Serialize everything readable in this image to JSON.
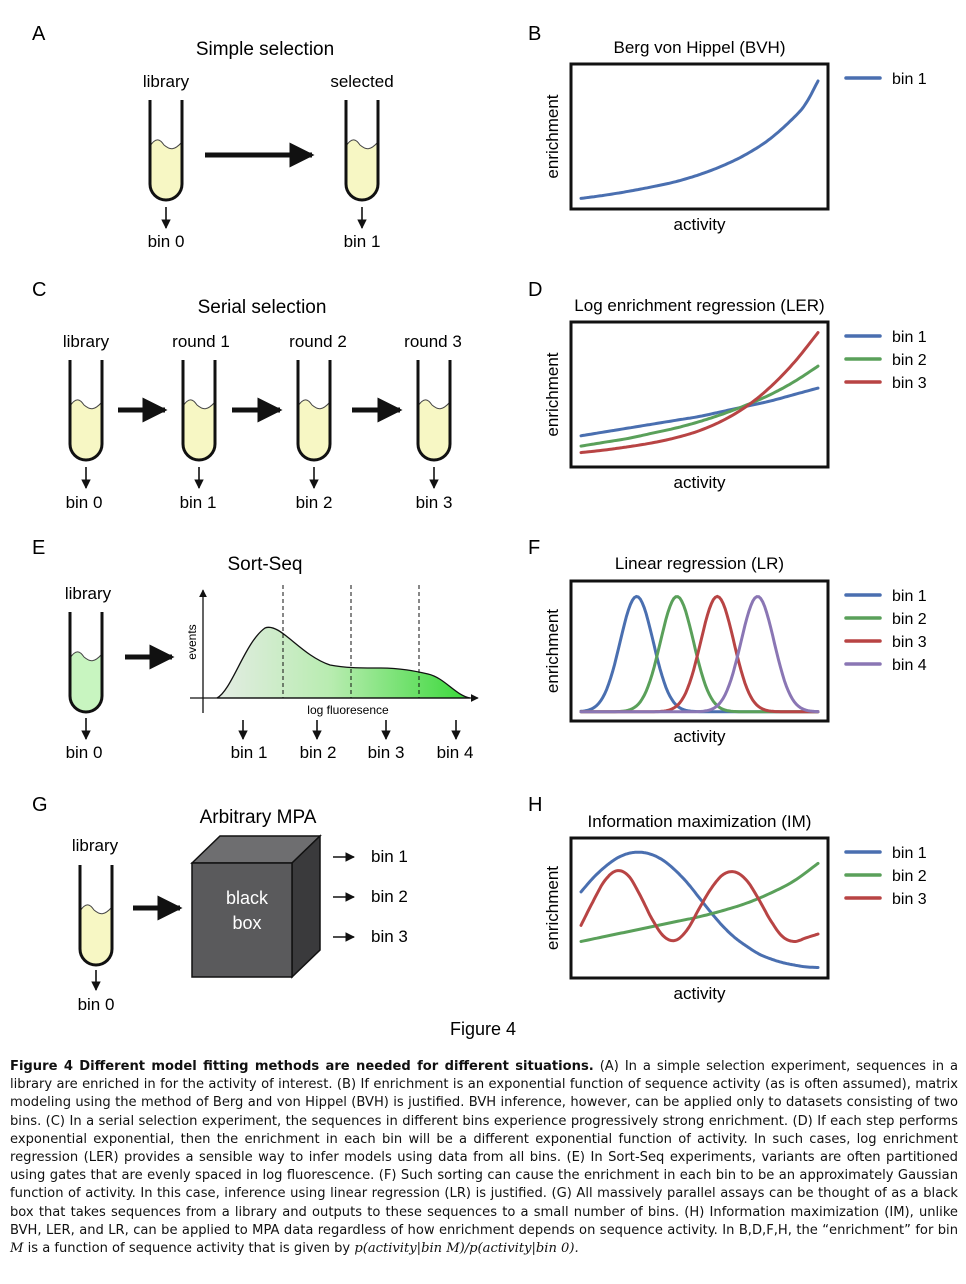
{
  "figure_label": "Figure 4",
  "panels": {
    "A": {
      "letter": "A",
      "title": "Simple selection",
      "tubes": [
        {
          "label": "library",
          "bin": "bin 0"
        },
        {
          "label": "selected",
          "bin": "bin 1"
        }
      ],
      "fill_color": "#f7f7c4"
    },
    "C": {
      "letter": "C",
      "title": "Serial selection",
      "tubes": [
        {
          "label": "library",
          "bin": "bin 0"
        },
        {
          "label": "round 1",
          "bin": "bin 1"
        },
        {
          "label": "round 2",
          "bin": "bin 2"
        },
        {
          "label": "round 3",
          "bin": "bin 3"
        }
      ],
      "fill_color": "#f7f7c4"
    },
    "E": {
      "letter": "E",
      "title": "Sort-Seq",
      "tube": {
        "label": "library",
        "bin": "bin 0"
      },
      "fill_color": "#c8f5c0",
      "y_label": "events",
      "x_label": "log fluoresence",
      "bins": [
        "bin 1",
        "bin 2",
        "bin 3",
        "bin 4"
      ]
    },
    "G": {
      "letter": "G",
      "title": "Arbitrary MPA",
      "tube": {
        "label": "library",
        "bin": "bin 0"
      },
      "box_line1": "black",
      "box_line2": "box",
      "outputs": [
        "bin 1",
        "bin 2",
        "bin 3"
      ],
      "fill_color": "#f7f7c4"
    }
  },
  "charts": {
    "B": {
      "letter": "B",
      "chart_data": {
        "type": "line",
        "title": "Berg von Hippel (BVH)",
        "xlabel": "activity",
        "ylabel": "enrichment",
        "xlim": [
          0,
          1
        ],
        "ylim": [
          0,
          1
        ],
        "legend_position": "right",
        "series": [
          {
            "name": "bin 1",
            "color": "#4a6fb0",
            "x": [
              0,
              0.1,
              0.2,
              0.3,
              0.4,
              0.5,
              0.6,
              0.7,
              0.8,
              0.9,
              0.95,
              1.0
            ],
            "y": [
              0.02,
              0.045,
              0.075,
              0.11,
              0.15,
              0.205,
              0.275,
              0.365,
              0.485,
              0.65,
              0.76,
              0.93
            ]
          }
        ]
      }
    },
    "D": {
      "letter": "D",
      "chart_data": {
        "type": "line",
        "title": "Log enrichment regression (LER)",
        "xlabel": "activity",
        "ylabel": "enrichment",
        "xlim": [
          0,
          1
        ],
        "ylim": [
          0,
          1
        ],
        "legend_position": "right",
        "series": [
          {
            "name": "bin 1",
            "color": "#4a6fb0",
            "x": [
              0,
              0.1,
              0.2,
              0.3,
              0.4,
              0.5,
              0.6,
              0.7,
              0.8,
              0.9,
              1.0
            ],
            "y": [
              0.18,
              0.21,
              0.24,
              0.27,
              0.3,
              0.33,
              0.37,
              0.41,
              0.45,
              0.5,
              0.55
            ]
          },
          {
            "name": "bin 2",
            "color": "#5aa05a",
            "x": [
              0,
              0.1,
              0.2,
              0.3,
              0.4,
              0.5,
              0.6,
              0.7,
              0.8,
              0.9,
              1.0
            ],
            "y": [
              0.1,
              0.13,
              0.16,
              0.2,
              0.24,
              0.29,
              0.35,
              0.42,
              0.5,
              0.6,
              0.72
            ]
          },
          {
            "name": "bin 3",
            "color": "#b84444",
            "x": [
              0,
              0.1,
              0.2,
              0.3,
              0.4,
              0.5,
              0.6,
              0.7,
              0.8,
              0.9,
              1.0
            ],
            "y": [
              0.05,
              0.07,
              0.095,
              0.125,
              0.165,
              0.22,
              0.3,
              0.41,
              0.56,
              0.75,
              0.98
            ]
          }
        ]
      }
    },
    "F": {
      "letter": "F",
      "chart_data": {
        "type": "line",
        "title": "Linear regression (LR)",
        "xlabel": "activity",
        "ylabel": "enrichment",
        "xlim": [
          0,
          1
        ],
        "ylim": [
          0,
          1
        ],
        "legend_position": "right",
        "series": [
          {
            "name": "bin 1",
            "color": "#4a6fb0",
            "gaussian": {
              "center": 0.235,
              "width": 0.07,
              "height": 0.93,
              "base": 0.01
            }
          },
          {
            "name": "bin 2",
            "color": "#5aa05a",
            "gaussian": {
              "center": 0.405,
              "width": 0.07,
              "height": 0.93,
              "base": 0.01
            }
          },
          {
            "name": "bin 3",
            "color": "#b84444",
            "gaussian": {
              "center": 0.575,
              "width": 0.07,
              "height": 0.93,
              "base": 0.01
            }
          },
          {
            "name": "bin 4",
            "color": "#8a76b4",
            "gaussian": {
              "center": 0.745,
              "width": 0.07,
              "height": 0.93,
              "base": 0.01
            }
          }
        ]
      }
    },
    "H": {
      "letter": "H",
      "chart_data": {
        "type": "line",
        "title": "Information maximization (IM)",
        "xlabel": "activity",
        "ylabel": "enrichment",
        "xlim": [
          0,
          1
        ],
        "ylim": [
          0,
          1
        ],
        "legend_position": "right",
        "series": [
          {
            "name": "bin 1",
            "color": "#4a6fb0",
            "x": [
              0,
              0.05,
              0.1,
              0.15,
              0.2,
              0.25,
              0.3,
              0.35,
              0.4,
              0.45,
              0.5,
              0.55,
              0.6,
              0.65,
              0.7,
              0.75,
              0.8,
              0.85,
              0.9,
              0.95,
              1.0
            ],
            "y": [
              0.63,
              0.74,
              0.83,
              0.9,
              0.94,
              0.95,
              0.93,
              0.88,
              0.8,
              0.7,
              0.58,
              0.46,
              0.35,
              0.26,
              0.19,
              0.13,
              0.09,
              0.06,
              0.04,
              0.025,
              0.02
            ]
          },
          {
            "name": "bin 2",
            "color": "#5aa05a",
            "x": [
              0,
              0.1,
              0.2,
              0.3,
              0.4,
              0.5,
              0.6,
              0.7,
              0.8,
              0.9,
              1.0
            ],
            "y": [
              0.23,
              0.27,
              0.31,
              0.35,
              0.39,
              0.43,
              0.48,
              0.54,
              0.62,
              0.72,
              0.86
            ]
          },
          {
            "name": "bin 3",
            "color": "#b84444",
            "x": [
              0,
              0.05,
              0.1,
              0.15,
              0.2,
              0.25,
              0.3,
              0.35,
              0.4,
              0.45,
              0.5,
              0.55,
              0.6,
              0.65,
              0.7,
              0.75,
              0.8,
              0.85,
              0.9,
              0.95,
              1.0
            ],
            "y": [
              0.36,
              0.55,
              0.72,
              0.8,
              0.76,
              0.6,
              0.41,
              0.27,
              0.24,
              0.33,
              0.5,
              0.66,
              0.77,
              0.79,
              0.72,
              0.57,
              0.4,
              0.27,
              0.23,
              0.26,
              0.29
            ]
          }
        ]
      }
    }
  },
  "caption": {
    "title": "Figure 4   Different model fitting methods are needed for different situations.",
    "body": " (A) In a simple selection experiment, sequences in a library are enriched in for the activity of interest. (B) If enrichment is an exponential function of sequence activity (as is often assumed), matrix modeling using the method of Berg and von Hippel (BVH) is justified. BVH inference, however, can be applied only to datasets consisting of two bins. (C) In a serial selection experiment, the sequences in different bins experience progressively strong enrichment. (D) If each step performs exponential exponential, then the enrichment in each bin will be a different exponential function of activity. In such cases, log enrichment regression (LER) provides a sensible way to infer models using data from all bins. (E) In Sort-Seq experiments, variants are often partitioned using gates that are evenly spaced in log fluorescence. (F) Such sorting can cause the enrichment in each bin to be an approximately Gaussian function of activity. In this case, inference using linear regression (LR) is justified. (G) All massively parallel assays can be thought of as a black box that takes sequences from a library and outputs to these sequences to a small number of bins. (H) Information maximization (IM), unlike BVH, LER, and LR, can be applied to MPA data regardless of how enrichment depends on sequence activity. In B,D,F,H, the “enrichment” for bin ",
    "math_var": "M",
    "body_end": " is a function of sequence activity that is given by ",
    "math_expr": "p(activity|bin M)/p(activity|bin 0).",
    "body_tail": ""
  }
}
